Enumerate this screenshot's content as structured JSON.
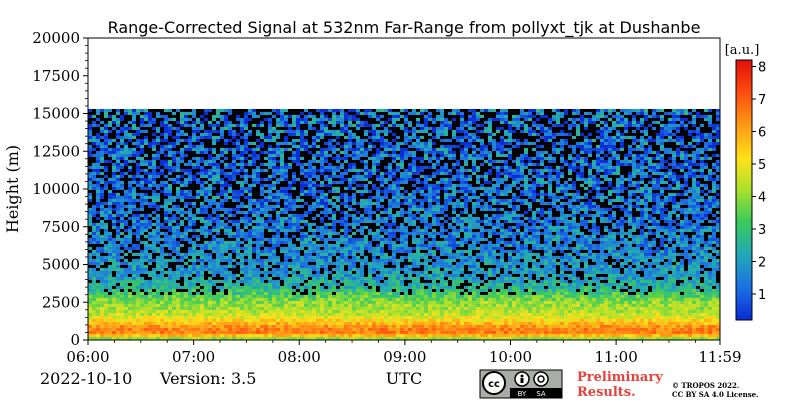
{
  "chart_data": {
    "type": "heatmap",
    "title": "Range-Corrected Signal at 532nm Far-Range from pollyxt_tjk at Dushanbe",
    "xlabel": "UTC",
    "ylabel": "Height (m)",
    "x_ticks": [
      "06:00",
      "07:00",
      "08:00",
      "09:00",
      "10:00",
      "11:00",
      "11:59"
    ],
    "y_ticks": [
      0,
      2500,
      5000,
      7500,
      10000,
      12500,
      15000,
      17500,
      20000
    ],
    "ylim": [
      0,
      20000
    ],
    "x_range": [
      "06:00",
      "11:59"
    ],
    "data_top_height_m": 15300,
    "colorbar": {
      "label": "[a.u.]",
      "ticks": [
        1,
        2,
        3,
        4,
        5,
        6,
        7,
        8
      ],
      "range": [
        0.2,
        8.2
      ],
      "colormap": [
        "#0a2bd6",
        "#1c6fe3",
        "#20a8b8",
        "#3cc95a",
        "#a8e02c",
        "#ffe21a",
        "#ff9a14",
        "#ff4a10",
        "#e0100a"
      ]
    },
    "profile": [
      {
        "height_m": 100,
        "value": 4.2
      },
      {
        "height_m": 400,
        "value": 6.6
      },
      {
        "height_m": 800,
        "value": 6.4
      },
      {
        "height_m": 1200,
        "value": 5.6
      },
      {
        "height_m": 1600,
        "value": 4.6
      },
      {
        "height_m": 2000,
        "value": 4.2
      },
      {
        "height_m": 2500,
        "value": 4.0
      },
      {
        "height_m": 3000,
        "value": 3.3
      },
      {
        "height_m": 3500,
        "value": 2.5
      },
      {
        "height_m": 4500,
        "value": 1.9
      },
      {
        "height_m": 6000,
        "value": 1.6
      },
      {
        "height_m": 8000,
        "value": 1.4
      },
      {
        "height_m": 11000,
        "value": 1.2
      },
      {
        "height_m": 15300,
        "value": 1.1
      }
    ],
    "grid": false
  },
  "footer": {
    "date": "2022-10-10",
    "version": "Version: 3.5",
    "preliminary_line1": "Preliminary",
    "preliminary_line2": "Results.",
    "copyright_line1": "© TROPOS 2022.",
    "copyright_line2": "CC BY SA 4.0 License.",
    "license_badge": {
      "icons": [
        "cc-icon",
        "by-icon",
        "sa-icon"
      ],
      "label_by": "BY",
      "label_sa": "SA"
    }
  }
}
